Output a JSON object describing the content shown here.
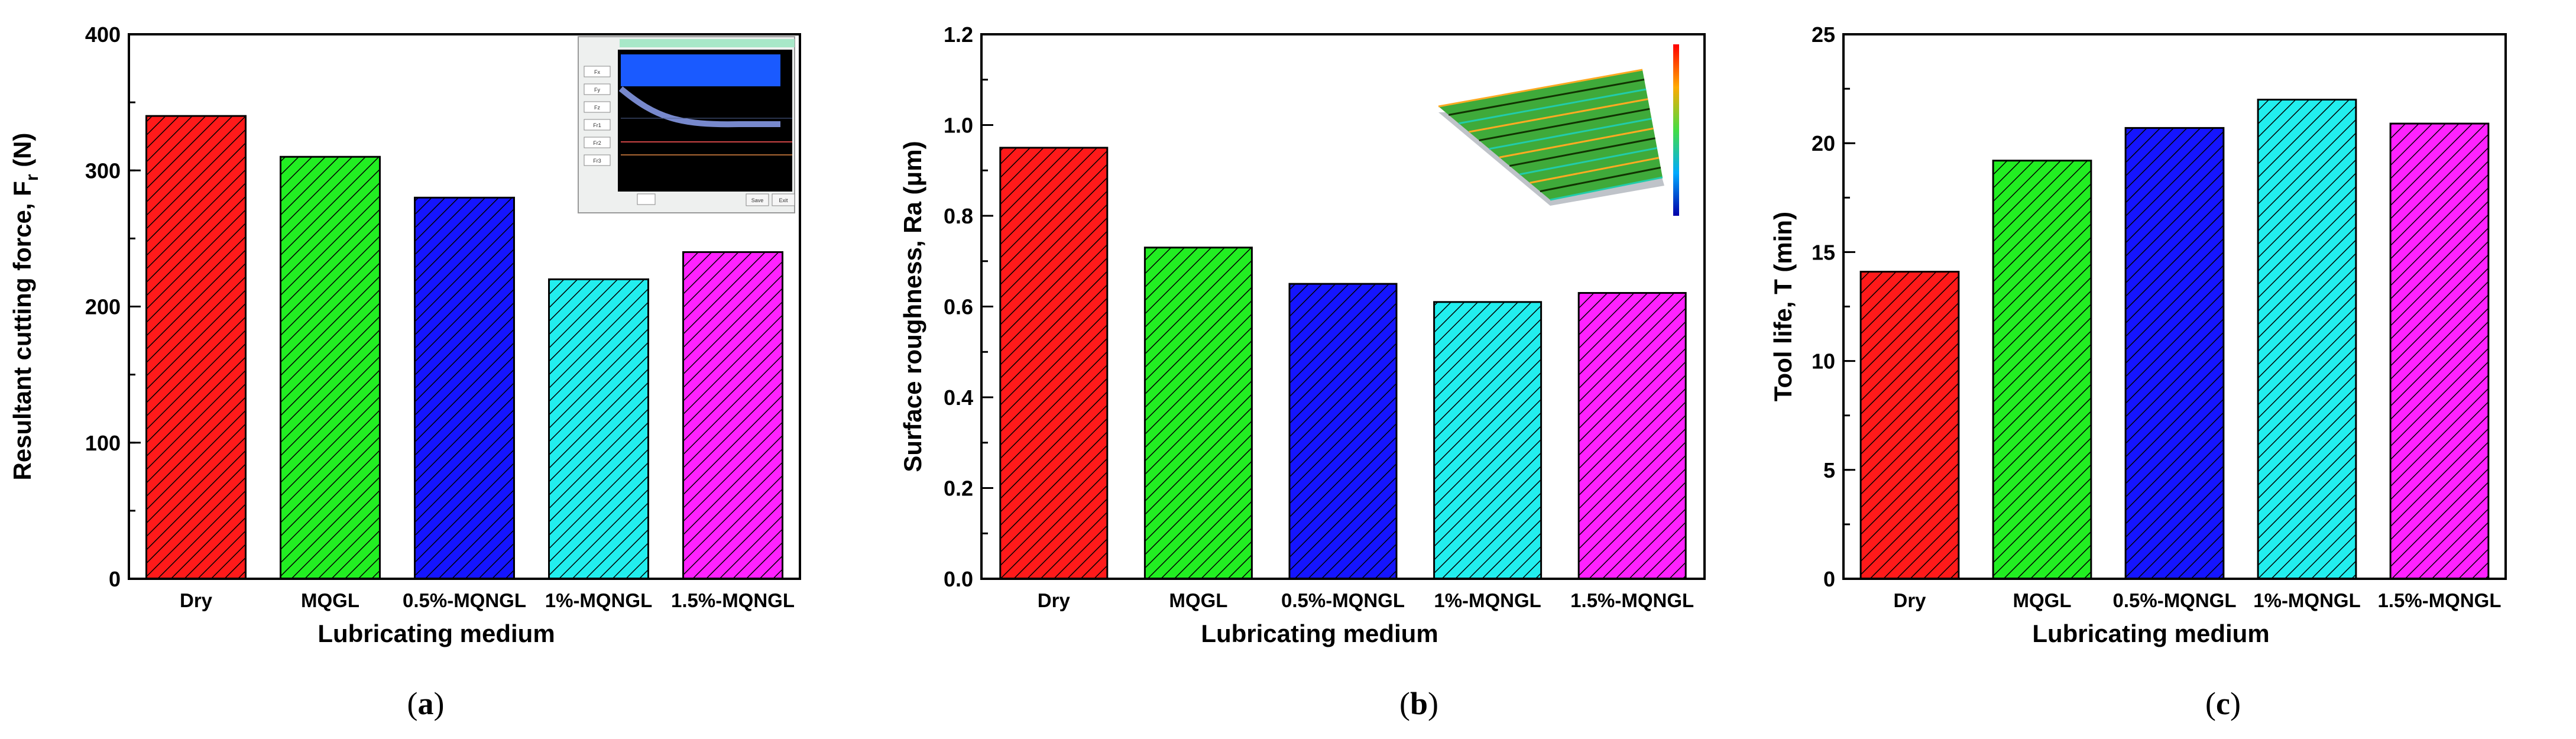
{
  "colors": {
    "dry": "#ff1a1a",
    "mqgl": "#22ee22",
    "mqngl_05": "#1515ff",
    "mqngl_1": "#22eeee",
    "mqngl_15": "#ff22ff"
  },
  "icons": {
    "inset_a": "cutting-force-signal-screenshot-icon",
    "inset_b": "surface-topography-3d-icon"
  },
  "chart_data": [
    {
      "type": "bar",
      "panel": "a",
      "panel_label": {
        "open": "(",
        "letter": "a",
        "close": ")"
      },
      "title": "",
      "xlabel": "Lubricating medium",
      "ylabel": "Resultant cutting force, F",
      "ylabel_sub": "r",
      "ylabel_unit": " (N)",
      "categories": [
        "Dry",
        "MQGL",
        "0.5%-MQNGL",
        "1%-MQNGL",
        "1.5%-MQNGL"
      ],
      "values": [
        340,
        310,
        280,
        220,
        240
      ],
      "ylim": [
        0,
        400
      ],
      "yticks": [
        0,
        100,
        200,
        300,
        400
      ],
      "yticks_labels": [
        "0",
        "100",
        "200",
        "300",
        "400"
      ],
      "minor_step": 50,
      "inset": "screenshot",
      "inset_labels": [
        "Fx",
        "Fy",
        "Fz",
        "Fr1",
        "Fr2",
        "Fr3"
      ],
      "inset_buttons": [
        "Save",
        "Exit"
      ]
    },
    {
      "type": "bar",
      "panel": "b",
      "panel_label": {
        "open": "(",
        "letter": "b",
        "close": ")"
      },
      "title": "",
      "xlabel": "Lubricating medium",
      "ylabel": "Surface roughness, Ra (μm)",
      "ylabel_sub": "",
      "ylabel_unit": "",
      "categories": [
        "Dry",
        "MQGL",
        "0.5%-MQNGL",
        "1%-MQNGL",
        "1.5%-MQNGL"
      ],
      "values": [
        0.95,
        0.73,
        0.65,
        0.61,
        0.63
      ],
      "ylim": [
        0,
        1.2
      ],
      "yticks": [
        0,
        0.2,
        0.4,
        0.6,
        0.8,
        1.0,
        1.2
      ],
      "yticks_labels": [
        "0.0",
        "0.2",
        "0.4",
        "0.6",
        "0.8",
        "1.0",
        "1.2"
      ],
      "minor_step": 0.1,
      "inset": "surface"
    },
    {
      "type": "bar",
      "panel": "c",
      "panel_label": {
        "open": "(",
        "letter": "c",
        "close": ")"
      },
      "title": "",
      "xlabel": "Lubricating medium",
      "ylabel": "Tool life, T (min)",
      "ylabel_sub": "",
      "ylabel_unit": "",
      "categories": [
        "Dry",
        "MQGL",
        "0.5%-MQNGL",
        "1%-MQNGL",
        "1.5%-MQNGL"
      ],
      "values": [
        14.1,
        19.2,
        20.7,
        22.0,
        20.9
      ],
      "ylim": [
        0,
        25
      ],
      "yticks": [
        0,
        5,
        10,
        15,
        20,
        25
      ],
      "yticks_labels": [
        "0",
        "5",
        "10",
        "15",
        "20",
        "25"
      ],
      "minor_step": 2.5,
      "inset": null
    }
  ]
}
